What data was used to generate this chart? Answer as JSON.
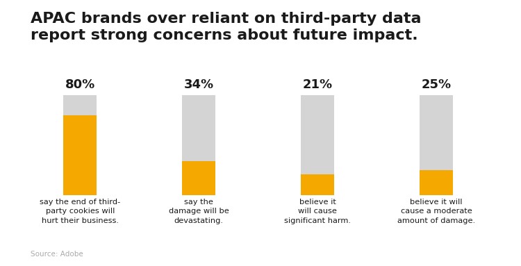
{
  "title_line1": "APAC brands over reliant on third-party data",
  "title_line2": "report strong concerns about future impact.",
  "source": "Source: Adobe",
  "bars": [
    {
      "pct": 80,
      "label": "say the end of third-\nparty cookies will\nhurt their business.",
      "pct_label": "80%"
    },
    {
      "pct": 34,
      "label": "say the\ndamage will be\ndevastating.",
      "pct_label": "34%"
    },
    {
      "pct": 21,
      "label": "believe it\nwill cause\nsignificant harm.",
      "pct_label": "21%"
    },
    {
      "pct": 25,
      "label": "believe it will\ncause a moderate\namount of damage.",
      "pct_label": "25%"
    }
  ],
  "bg_color": "#ffffff",
  "bar_bg_color": "#d4d4d4",
  "bar_fg_color": "#f5a800",
  "title_fontsize": 16,
  "pct_fontsize": 13,
  "label_fontsize": 8.2,
  "source_fontsize": 7.5
}
